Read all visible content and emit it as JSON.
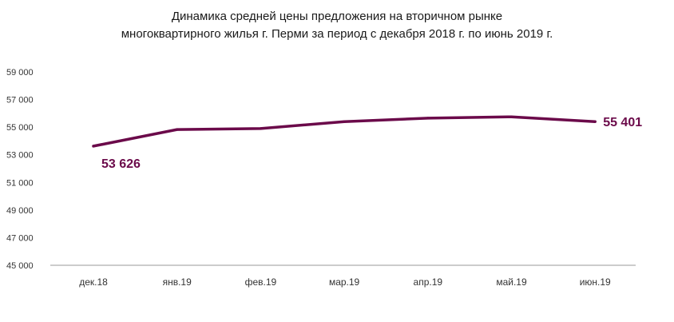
{
  "chart_data": {
    "type": "line",
    "title_line1": "Динамика  средней цены предложения на вторичном  рынке",
    "title_line2": "многоквартирного жилья г. Перми за период с декабря 2018 г. по июнь 2019 г.",
    "categories": [
      "дек.18",
      "янв.19",
      "фев.19",
      "мар.19",
      "апр.19",
      "май.19",
      "июн.19"
    ],
    "series": [
      {
        "values": [
          53626,
          54830,
          54900,
          55400,
          55650,
          55750,
          55401
        ]
      }
    ],
    "ylim": [
      45000,
      59000
    ],
    "yticks": [
      45000,
      47000,
      49000,
      51000,
      53000,
      55000,
      57000,
      59000
    ],
    "ytick_labels": [
      "45 000",
      "47 000",
      "49 000",
      "51 000",
      "53 000",
      "55 000",
      "57 000",
      "59 000"
    ],
    "data_labels": [
      {
        "index": 0,
        "text": "53 626"
      },
      {
        "index": 6,
        "text": "55 401"
      }
    ],
    "line_color": "#6b0a4a",
    "grid": false,
    "legend": "none"
  }
}
